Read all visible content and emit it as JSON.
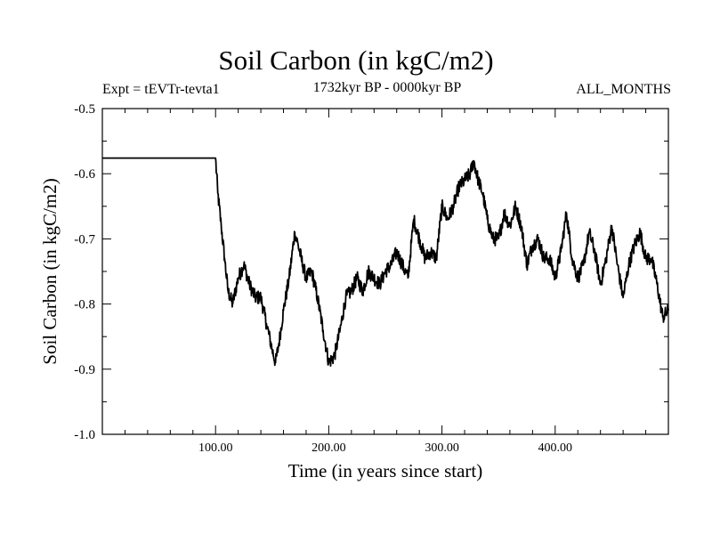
{
  "chart_data": {
    "type": "line",
    "title": "Soil Carbon (in kgC/m2)",
    "left_label": "Expt = tEVTr-tevta1",
    "center_label": "1732kyr BP - 0000kyr BP",
    "right_label": "ALL_MONTHS",
    "xlabel": "Time (in years since start)",
    "ylabel": "Soil Carbon (in kgC/m2)",
    "xlim": [
      0,
      500
    ],
    "ylim": [
      -1.0,
      -0.5
    ],
    "x_ticks": [
      100,
      200,
      300,
      400
    ],
    "x_tick_labels": [
      "100.00",
      "200.00",
      "300.00",
      "400.00"
    ],
    "y_ticks": [
      -1.0,
      -0.9,
      -0.8,
      -0.7,
      -0.6,
      -0.5
    ],
    "y_tick_labels": [
      "-1.0",
      "-0.9",
      "-0.8",
      "-0.7",
      "-0.6",
      "-0.5"
    ],
    "grid": false,
    "series": [
      {
        "name": "Soil Carbon",
        "color": "#000000",
        "x": [
          0,
          100,
          102,
          105,
          108,
          111,
          115,
          120,
          125,
          130,
          135,
          140,
          145,
          150,
          153,
          156,
          160,
          165,
          170,
          173,
          177,
          180,
          185,
          190,
          195,
          198,
          200,
          205,
          210,
          215,
          220,
          225,
          230,
          235,
          240,
          245,
          250,
          255,
          260,
          265,
          270,
          275,
          280,
          285,
          290,
          295,
          300,
          305,
          310,
          315,
          320,
          325,
          328,
          332,
          336,
          340,
          345,
          350,
          355,
          360,
          365,
          370,
          375,
          380,
          385,
          390,
          395,
          400,
          405,
          410,
          415,
          420,
          425,
          430,
          435,
          440,
          445,
          450,
          455,
          460,
          465,
          470,
          475,
          480,
          485,
          490,
          495,
          500
        ],
        "values": [
          -0.576,
          -0.576,
          -0.63,
          -0.68,
          -0.73,
          -0.78,
          -0.8,
          -0.76,
          -0.74,
          -0.77,
          -0.79,
          -0.79,
          -0.83,
          -0.87,
          -0.89,
          -0.86,
          -0.81,
          -0.76,
          -0.69,
          -0.71,
          -0.74,
          -0.76,
          -0.75,
          -0.79,
          -0.84,
          -0.87,
          -0.89,
          -0.88,
          -0.84,
          -0.79,
          -0.78,
          -0.76,
          -0.78,
          -0.75,
          -0.76,
          -0.77,
          -0.75,
          -0.74,
          -0.72,
          -0.74,
          -0.76,
          -0.67,
          -0.7,
          -0.73,
          -0.72,
          -0.73,
          -0.65,
          -0.67,
          -0.65,
          -0.62,
          -0.61,
          -0.6,
          -0.58,
          -0.61,
          -0.63,
          -0.67,
          -0.7,
          -0.7,
          -0.66,
          -0.68,
          -0.65,
          -0.68,
          -0.74,
          -0.71,
          -0.7,
          -0.73,
          -0.73,
          -0.76,
          -0.72,
          -0.66,
          -0.73,
          -0.76,
          -0.74,
          -0.69,
          -0.72,
          -0.77,
          -0.73,
          -0.68,
          -0.74,
          -0.79,
          -0.74,
          -0.71,
          -0.69,
          -0.73,
          -0.73,
          -0.77,
          -0.82,
          -0.81
        ]
      }
    ]
  }
}
